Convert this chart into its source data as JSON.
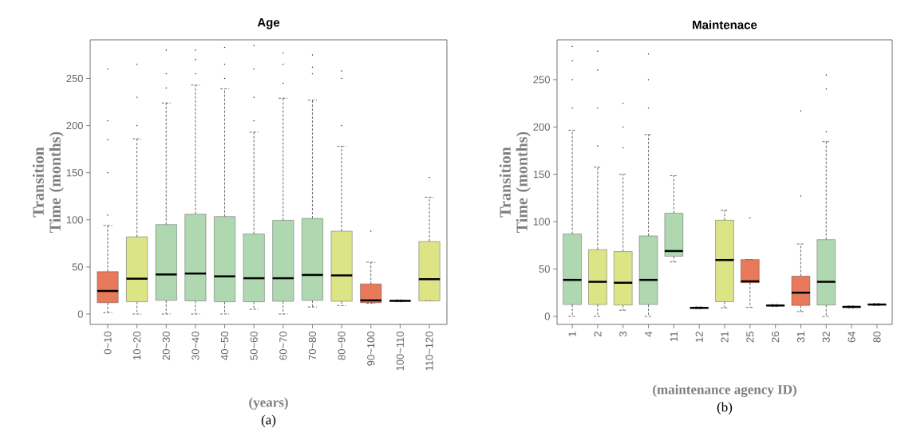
{
  "chart_data": [
    {
      "type": "box",
      "title": "Age",
      "xlabel": "(years)",
      "ylabel": "Transition Time (months)",
      "annotations": [
        "(a)"
      ],
      "categories": [
        "0~10",
        "10~20",
        "20~30",
        "30~40",
        "40~50",
        "50~60",
        "60~70",
        "70~80",
        "80~90",
        "90~100",
        "100~110",
        "110~120"
      ],
      "colors": [
        "#e8795a",
        "#dde485",
        "#afd8b0",
        "#afd8b0",
        "#afd8b0",
        "#afd8b0",
        "#afd8b0",
        "#afd8b0",
        "#dde485",
        "#e8795a",
        "#afd8b0",
        "#dde485"
      ],
      "boxes": [
        {
          "low": 1.5,
          "q1": 12,
          "median": 24.5,
          "q3": 45,
          "high": 94,
          "outliers": [
            105,
            150,
            185,
            205,
            260
          ]
        },
        {
          "low": 0,
          "q1": 13,
          "median": 37.5,
          "q3": 82,
          "high": 186,
          "outliers": [
            200,
            230,
            265
          ]
        },
        {
          "low": 0,
          "q1": 14.5,
          "median": 42,
          "q3": 95,
          "high": 224,
          "outliers": [
            240,
            255,
            280
          ]
        },
        {
          "low": 0,
          "q1": 14,
          "median": 43,
          "q3": 106,
          "high": 243,
          "outliers": [
            255,
            270,
            280
          ]
        },
        {
          "low": 0,
          "q1": 13,
          "median": 40,
          "q3": 103.5,
          "high": 239,
          "outliers": [
            250,
            265,
            283
          ]
        },
        {
          "low": 5,
          "q1": 13,
          "median": 38,
          "q3": 85,
          "high": 193,
          "outliers": [
            205,
            230,
            260,
            285
          ]
        },
        {
          "low": 0,
          "q1": 13.5,
          "median": 38,
          "q3": 99.5,
          "high": 229,
          "outliers": [
            245,
            265,
            277
          ]
        },
        {
          "low": 7.5,
          "q1": 14.5,
          "median": 41.5,
          "q3": 101.5,
          "high": 227,
          "outliers": [
            255,
            262,
            275
          ]
        },
        {
          "low": 9,
          "q1": 13.5,
          "median": 41,
          "q3": 88,
          "high": 178,
          "outliers": [
            200,
            250,
            258
          ]
        },
        {
          "low": 11.5,
          "q1": 12,
          "median": 14.5,
          "q3": 32,
          "high": 55,
          "outliers": [
            88
          ]
        },
        {
          "low": 13,
          "q1": 13.5,
          "median": 14,
          "q3": 14.5,
          "high": 15
        },
        {
          "low": 14,
          "q1": 14,
          "median": 37,
          "q3": 77,
          "high": 124,
          "outliers": [
            145
          ]
        }
      ],
      "ylim": [
        -11,
        291
      ],
      "yticks": [
        0,
        50,
        100,
        150,
        200,
        250
      ]
    },
    {
      "type": "box",
      "title": "Maintenace",
      "xlabel": "(maintenance agency ID)",
      "ylabel": "Transition Time (months)",
      "annotations": [
        "(b)"
      ],
      "categories": [
        "1",
        "2",
        "3",
        "4",
        "11",
        "12",
        "21",
        "25",
        "26",
        "31",
        "32",
        "64",
        "80"
      ],
      "colors": [
        "#afd8b0",
        "#dde485",
        "#dde485",
        "#afd8b0",
        "#afd8b0",
        "#afd8b0",
        "#dde485",
        "#e8795a",
        "#afd8b0",
        "#e8795a",
        "#afd8b0",
        "#afd8b0",
        "#afd8b0"
      ],
      "boxes": [
        {
          "low": 0,
          "q1": 12.5,
          "median": 38.5,
          "q3": 87,
          "high": 196.5,
          "outliers": [
            220,
            250,
            270,
            285
          ]
        },
        {
          "low": 0,
          "q1": 12.5,
          "median": 36.5,
          "q3": 70.5,
          "high": 157.5,
          "outliers": [
            180,
            220,
            260,
            280
          ]
        },
        {
          "low": 6.5,
          "q1": 12,
          "median": 35.5,
          "q3": 68.5,
          "high": 150,
          "outliers": [
            178,
            200,
            225
          ]
        },
        {
          "low": 0,
          "q1": 12.5,
          "median": 38.5,
          "q3": 85,
          "high": 192,
          "outliers": [
            220,
            250,
            277
          ]
        },
        {
          "low": 57.5,
          "q1": 63.5,
          "median": 69,
          "q3": 109,
          "high": 148.5
        },
        {
          "low": 8,
          "q1": 8.5,
          "median": 9,
          "q3": 9.5,
          "high": 10
        },
        {
          "low": 9,
          "q1": 15.5,
          "median": 59.5,
          "q3": 101.5,
          "high": 112
        },
        {
          "low": 9.5,
          "q1": 35.5,
          "median": 37,
          "q3": 60,
          "high": 60,
          "outliers": [
            104
          ]
        },
        {
          "low": 10.5,
          "q1": 11,
          "median": 11.5,
          "q3": 12,
          "high": 12.5
        },
        {
          "low": 5,
          "q1": 11.5,
          "median": 25,
          "q3": 42.5,
          "high": 76.5,
          "outliers": [
            127,
            217
          ]
        },
        {
          "low": 0,
          "q1": 12,
          "median": 36.5,
          "q3": 81,
          "high": 184.5,
          "outliers": [
            195,
            240,
            255
          ]
        },
        {
          "low": 9,
          "q1": 9.5,
          "median": 10,
          "q3": 10.5,
          "high": 11
        },
        {
          "low": 11.5,
          "q1": 12,
          "median": 12.5,
          "q3": 13,
          "high": 13.5
        }
      ],
      "ylim": [
        -8.5,
        292
      ],
      "yticks": [
        0,
        50,
        100,
        150,
        200,
        250
      ]
    }
  ]
}
